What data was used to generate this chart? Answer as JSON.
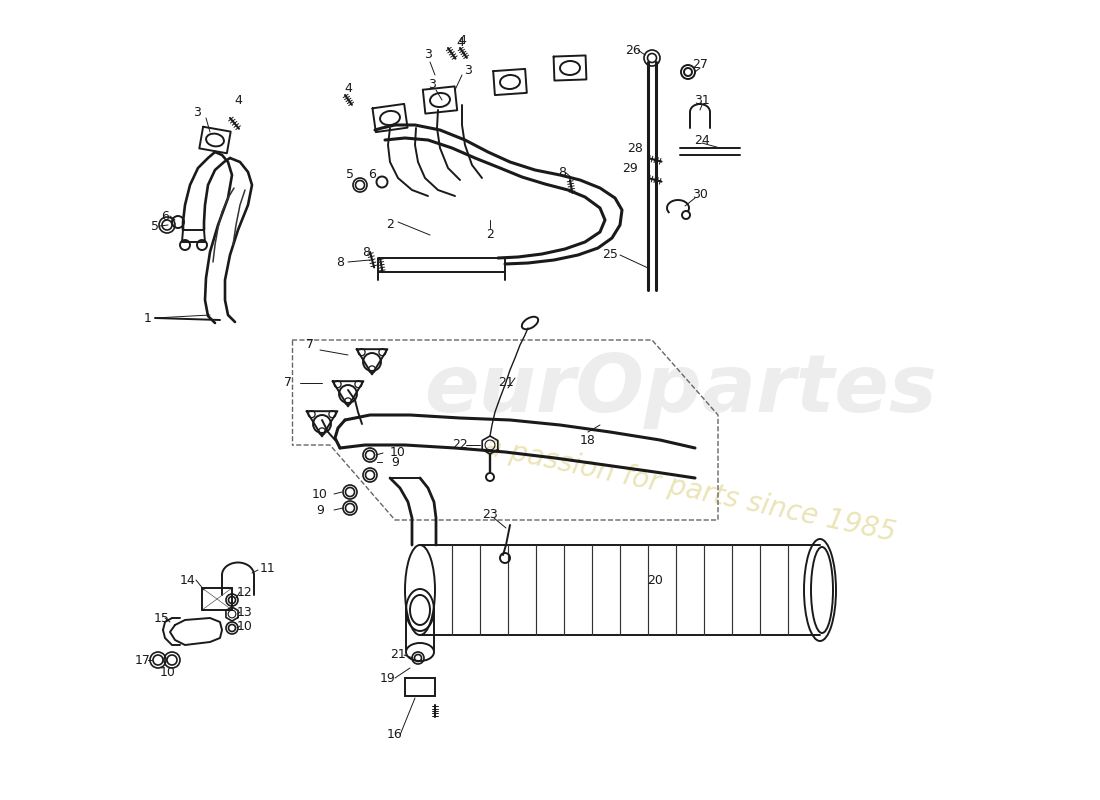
{
  "background_color": "#ffffff",
  "line_color": "#1a1a1a",
  "watermark1": "eurOpartes",
  "watermark2": "a passion for parts since 1985",
  "fig_width": 11.0,
  "fig_height": 8.0,
  "dpi": 100
}
